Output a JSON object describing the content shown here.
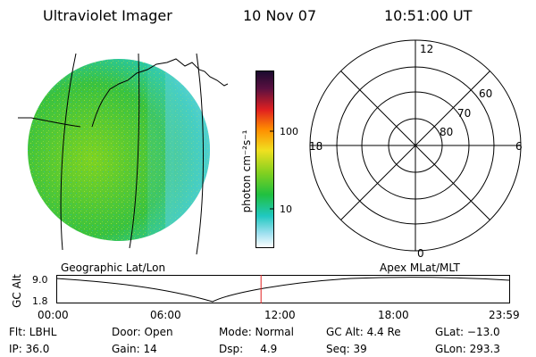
{
  "header": {
    "instrument": "Ultraviolet Imager",
    "date": "10 Nov 07",
    "time": "10:51:00 UT"
  },
  "colorbar": {
    "unit_label": "photon cm⁻²s⁻¹",
    "ticks": [
      "100",
      "10"
    ]
  },
  "polar_plot": {
    "mlt_labels": {
      "top": "12",
      "right": "6",
      "bottom": "0",
      "left": "18"
    },
    "lat_labels": [
      "60",
      "70",
      "80"
    ]
  },
  "panel_labels": {
    "left": "Geographic Lat/Lon",
    "right": "Apex MLat/MLT"
  },
  "altitude_plot": {
    "y_label": "GC Alt",
    "y_ticks": [
      "9.0",
      "1.8"
    ],
    "x_ticks": [
      "00:00",
      "06:00",
      "12:00",
      "18:00",
      "23:59"
    ],
    "current_time_fraction": 0.4521
  },
  "footer": {
    "rows": [
      [
        "Flt: LBHL",
        "Door: Open",
        "Mode: Normal",
        "GC Alt: 4.4 Re",
        "GLat: −13.0"
      ],
      [
        "IP: 36.0",
        "Gain: 14",
        "Dsp:     4.9",
        "Seq: 39",
        "GLon: 293.3"
      ]
    ]
  }
}
